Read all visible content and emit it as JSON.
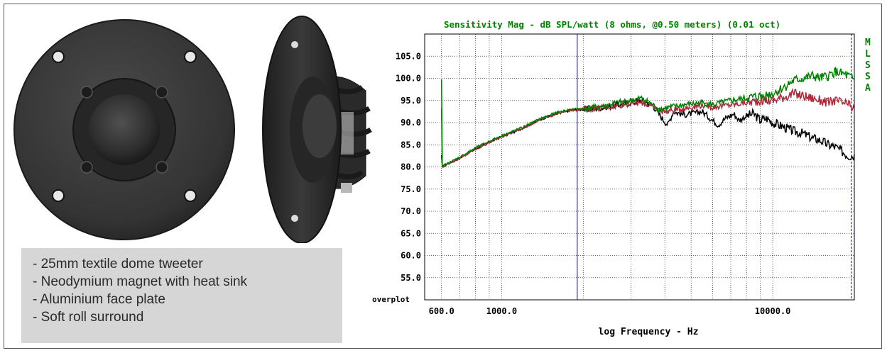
{
  "features": [
    "- 25mm textile dome tweeter",
    "- Neodymium magnet with heat sink",
    "- Aluminium face plate",
    "- Soft roll surround"
  ],
  "colors": {
    "mls": "#008000",
    "black_trace": "#000000",
    "red_trace": "#b02838",
    "green_trace": "#008000",
    "marker": "#3333aa",
    "panel": "#d6d6d6"
  },
  "chart_data": {
    "type": "line",
    "title": "Sensitivity Mag - dB SPL/watt (8 ohms, @0.50 meters) (0.01 oct)",
    "side_label": [
      "M",
      "L",
      "S",
      "S",
      "A"
    ],
    "xlabel": "log Frequency - Hz",
    "ylabel": "",
    "corner_label": "overplot",
    "xscale": "log",
    "xlim": [
      520,
      20000
    ],
    "ylim": [
      50,
      110
    ],
    "grid": true,
    "x_tick_labels": [
      {
        "value": 600,
        "label": "600.0"
      },
      {
        "value": 1000,
        "label": "1000.0"
      },
      {
        "value": 10000,
        "label": "10000.0"
      }
    ],
    "y_ticks": [
      55,
      60,
      65,
      70,
      75,
      80,
      85,
      90,
      95,
      100,
      105
    ],
    "y_tick_labels": [
      "55.0",
      "60.0",
      "65.0",
      "70.0",
      "75.0",
      "80.0",
      "85.0",
      "90.0",
      "95.0",
      "100.0",
      "105.0"
    ],
    "markers": [
      1900,
      19500
    ],
    "series": [
      {
        "color": "#000000",
        "points": [
          [
            600,
            80.0
          ],
          [
            700,
            82.0
          ],
          [
            800,
            84.0
          ],
          [
            900,
            85.5
          ],
          [
            1000,
            86.8
          ],
          [
            1200,
            88.8
          ],
          [
            1400,
            90.8
          ],
          [
            1600,
            92.0
          ],
          [
            1800,
            92.8
          ],
          [
            2000,
            93.0
          ],
          [
            2300,
            93.3
          ],
          [
            2600,
            93.8
          ],
          [
            3000,
            94.5
          ],
          [
            3300,
            95.0
          ],
          [
            3600,
            94.0
          ],
          [
            3900,
            91.0
          ],
          [
            4100,
            89.5
          ],
          [
            4300,
            92.5
          ],
          [
            4700,
            91.8
          ],
          [
            5000,
            92.0
          ],
          [
            5500,
            92.5
          ],
          [
            6000,
            90.5
          ],
          [
            6300,
            89.5
          ],
          [
            6700,
            91.0
          ],
          [
            7200,
            92.0
          ],
          [
            7500,
            90.5
          ],
          [
            8000,
            91.5
          ],
          [
            8500,
            92.0
          ],
          [
            9000,
            90.5
          ],
          [
            9500,
            91.0
          ],
          [
            10000,
            90.0
          ],
          [
            11000,
            89.0
          ],
          [
            12000,
            88.0
          ],
          [
            13000,
            87.5
          ],
          [
            14000,
            86.5
          ],
          [
            15000,
            86.0
          ],
          [
            16000,
            85.0
          ],
          [
            17000,
            84.5
          ],
          [
            18000,
            83.5
          ],
          [
            19000,
            82.5
          ],
          [
            20000,
            82.5
          ]
        ]
      },
      {
        "color": "#b02838",
        "points": [
          [
            600,
            80.0
          ],
          [
            700,
            82.0
          ],
          [
            800,
            84.0
          ],
          [
            900,
            85.5
          ],
          [
            1000,
            86.8
          ],
          [
            1200,
            88.8
          ],
          [
            1400,
            90.8
          ],
          [
            1600,
            92.0
          ],
          [
            1800,
            92.8
          ],
          [
            2000,
            93.0
          ],
          [
            2300,
            93.3
          ],
          [
            2600,
            93.8
          ],
          [
            3000,
            94.3
          ],
          [
            3300,
            94.5
          ],
          [
            3600,
            93.5
          ],
          [
            4000,
            92.5
          ],
          [
            4500,
            93.0
          ],
          [
            5000,
            93.5
          ],
          [
            5500,
            94.0
          ],
          [
            6000,
            93.5
          ],
          [
            6500,
            93.8
          ],
          [
            7000,
            94.0
          ],
          [
            8000,
            94.5
          ],
          [
            9000,
            95.0
          ],
          [
            10000,
            95.0
          ],
          [
            11000,
            95.8
          ],
          [
            12000,
            96.5
          ],
          [
            13000,
            96.0
          ],
          [
            14000,
            95.5
          ],
          [
            15000,
            95.0
          ],
          [
            16000,
            94.5
          ],
          [
            17000,
            95.0
          ],
          [
            18000,
            94.5
          ],
          [
            19000,
            94.0
          ],
          [
            20000,
            93.0
          ]
        ]
      },
      {
        "color": "#008000",
        "points": [
          [
            600,
            80.0
          ],
          [
            700,
            82.2
          ],
          [
            800,
            84.3
          ],
          [
            900,
            85.8
          ],
          [
            1000,
            87.0
          ],
          [
            1200,
            89.0
          ],
          [
            1400,
            91.0
          ],
          [
            1600,
            92.3
          ],
          [
            1800,
            93.0
          ],
          [
            2000,
            93.2
          ],
          [
            2300,
            93.5
          ],
          [
            2600,
            94.3
          ],
          [
            3000,
            95.0
          ],
          [
            3300,
            95.5
          ],
          [
            3500,
            94.5
          ],
          [
            3800,
            93.0
          ],
          [
            4200,
            93.5
          ],
          [
            4700,
            94.0
          ],
          [
            5000,
            94.2
          ],
          [
            5500,
            94.5
          ],
          [
            6000,
            94.0
          ],
          [
            6500,
            94.5
          ],
          [
            7000,
            95.0
          ],
          [
            8000,
            95.5
          ],
          [
            9000,
            96.0
          ],
          [
            10000,
            96.5
          ],
          [
            11000,
            98.0
          ],
          [
            12000,
            99.5
          ],
          [
            13000,
            100.0
          ],
          [
            14000,
            100.5
          ],
          [
            15000,
            100.0
          ],
          [
            16000,
            100.5
          ],
          [
            17000,
            101.5
          ],
          [
            18000,
            101.0
          ],
          [
            19000,
            100.5
          ],
          [
            20000,
            99.5
          ]
        ]
      }
    ]
  }
}
